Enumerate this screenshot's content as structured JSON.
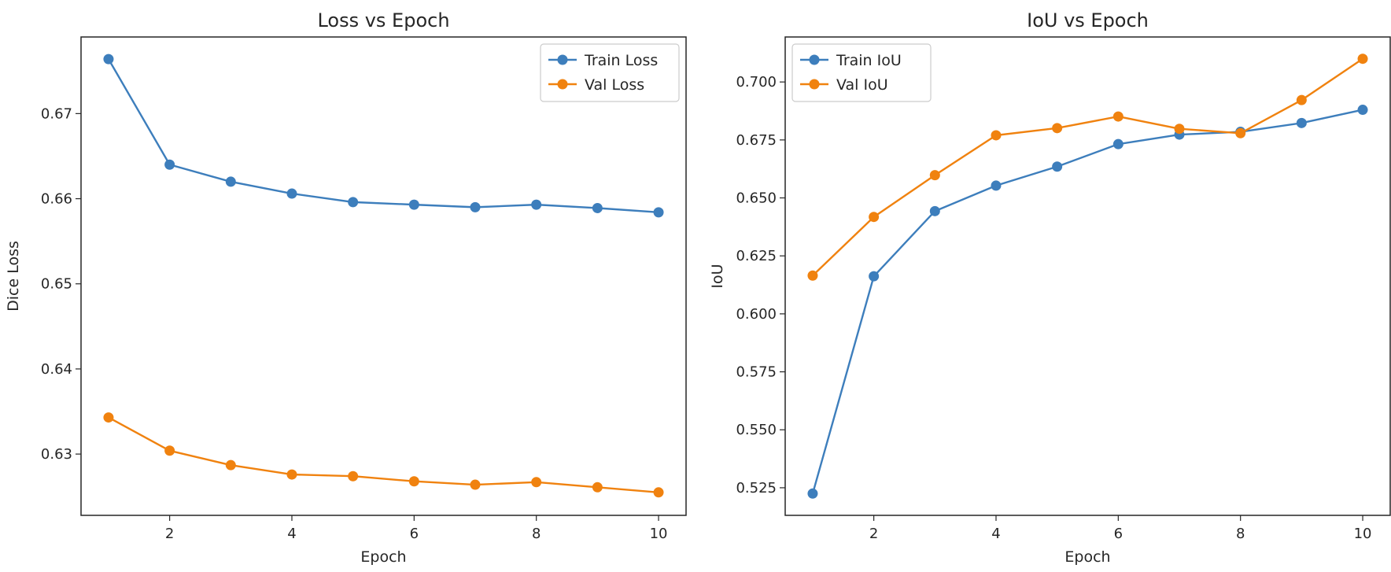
{
  "colors": {
    "train": "#3d7ebc",
    "val": "#f0820f",
    "axis": "#262626",
    "background": "#ffffff"
  },
  "chart_data": [
    {
      "type": "line",
      "title": "Loss vs Epoch",
      "xlabel": "Epoch",
      "ylabel": "Dice Loss",
      "xlim": [
        0.55,
        10.45
      ],
      "ylim": [
        0.6228,
        0.679
      ],
      "x_ticks": [
        2,
        4,
        6,
        8,
        10
      ],
      "x_tick_labels": [
        "2",
        "4",
        "6",
        "8",
        "10"
      ],
      "y_ticks": [
        0.63,
        0.64,
        0.65,
        0.66,
        0.67
      ],
      "y_tick_labels": [
        "0.63",
        "0.64",
        "0.65",
        "0.66",
        "0.67"
      ],
      "legend_position": "top-right",
      "grid": false,
      "x": [
        1,
        2,
        3,
        4,
        5,
        6,
        7,
        8,
        9,
        10
      ],
      "series": [
        {
          "name": "Train Loss",
          "color": "#3d7ebc",
          "values": [
            0.6764,
            0.664,
            0.662,
            0.6606,
            0.6596,
            0.6593,
            0.659,
            0.6593,
            0.6589,
            0.6584
          ]
        },
        {
          "name": "Val Loss",
          "color": "#f0820f",
          "values": [
            0.6343,
            0.6304,
            0.6287,
            0.6276,
            0.6274,
            0.6268,
            0.6264,
            0.6267,
            0.6261,
            0.6255
          ]
        }
      ]
    },
    {
      "type": "line",
      "title": "IoU vs Epoch",
      "xlabel": "Epoch",
      "ylabel": "IoU",
      "xlim": [
        0.55,
        10.45
      ],
      "ylim": [
        0.5131,
        0.7194
      ],
      "x_ticks": [
        2,
        4,
        6,
        8,
        10
      ],
      "x_tick_labels": [
        "2",
        "4",
        "6",
        "8",
        "10"
      ],
      "y_ticks": [
        0.525,
        0.55,
        0.575,
        0.6,
        0.625,
        0.65,
        0.675,
        0.7
      ],
      "y_tick_labels": [
        "0.525",
        "0.550",
        "0.575",
        "0.600",
        "0.625",
        "0.650",
        "0.675",
        "0.700"
      ],
      "legend_position": "top-left",
      "grid": false,
      "x": [
        1,
        2,
        3,
        4,
        5,
        6,
        7,
        8,
        9,
        10
      ],
      "series": [
        {
          "name": "Train IoU",
          "color": "#3d7ebc",
          "values": [
            0.5225,
            0.6162,
            0.6443,
            0.6553,
            0.6635,
            0.6732,
            0.6773,
            0.6785,
            0.6823,
            0.688
          ]
        },
        {
          "name": "Val IoU",
          "color": "#f0820f",
          "values": [
            0.6165,
            0.6418,
            0.6598,
            0.677,
            0.6801,
            0.6851,
            0.6798,
            0.6779,
            0.6922,
            0.71
          ]
        }
      ]
    }
  ]
}
